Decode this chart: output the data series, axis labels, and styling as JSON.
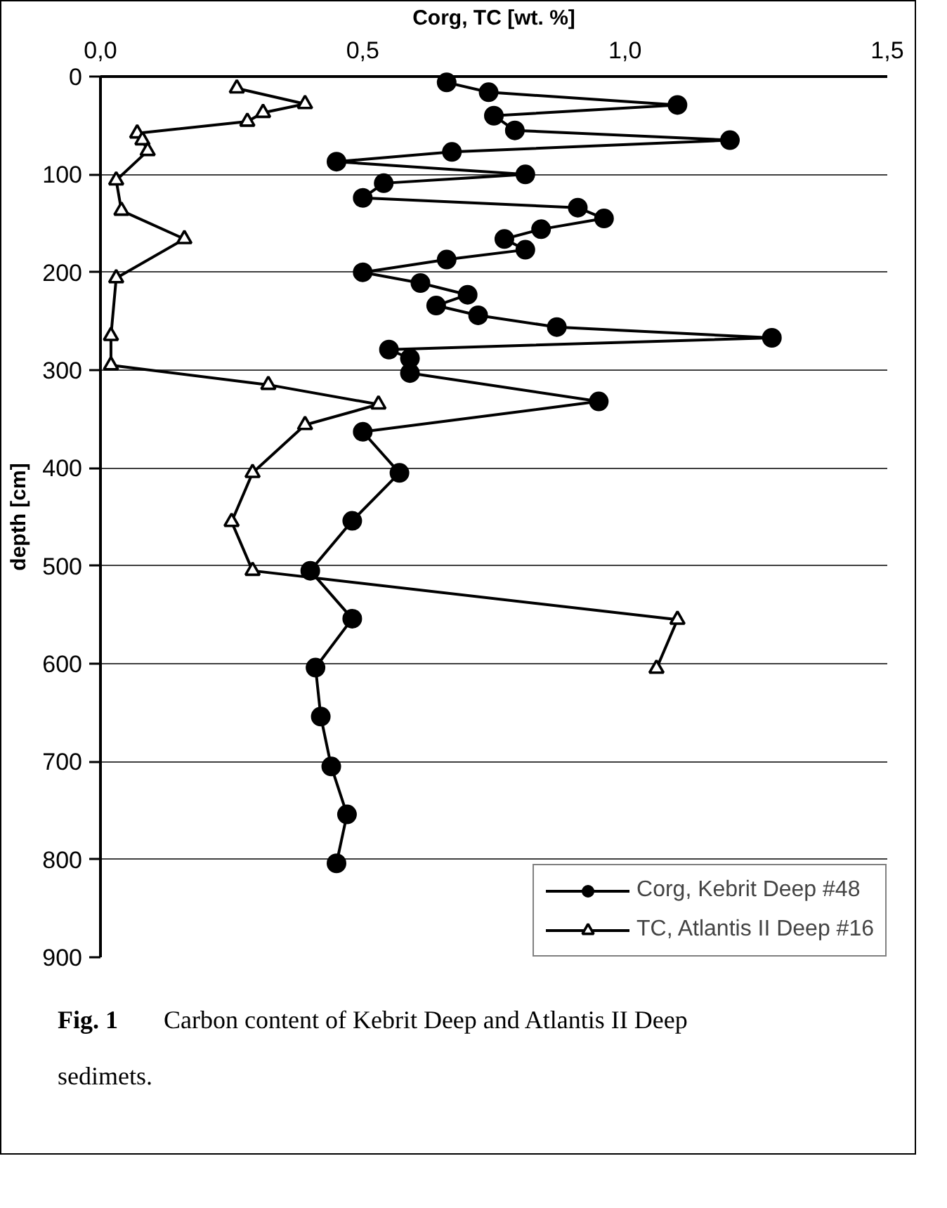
{
  "chart_data": {
    "type": "line",
    "xlabel": "Corg, TC [wt. %]",
    "ylabel": "depth [cm]",
    "xlim": [
      0,
      1.5
    ],
    "ylim": [
      900,
      0
    ],
    "xticks": [
      {
        "value": 0,
        "label": "0,0"
      },
      {
        "value": 0.5,
        "label": "0,5"
      },
      {
        "value": 1.0,
        "label": "1,0"
      },
      {
        "value": 1.5,
        "label": "1,5"
      }
    ],
    "yticks": [
      0,
      100,
      200,
      300,
      400,
      500,
      600,
      700,
      800,
      900
    ],
    "grid": "y",
    "legend": "bottom right",
    "line_style": "solid",
    "annotations": [
      "Fig. 1",
      "Carbon content of Kebrit Deep and Atlantis II Deep sedimets."
    ],
    "series": [
      {
        "name": "Corg, Kebrit Deep #48",
        "color": "#000000",
        "marker": "circle",
        "x": [
          0.66,
          0.74,
          1.1,
          0.75,
          0.79,
          1.2,
          0.67,
          0.45,
          0.81,
          0.54,
          0.5,
          0.91,
          0.96,
          0.84,
          0.77,
          0.81,
          0.66,
          0.5,
          0.61,
          0.7,
          0.64,
          0.72,
          0.87,
          1.28,
          0.55,
          0.59,
          0.59,
          0.95,
          0.5,
          0.57,
          0.48,
          0.4,
          0.48,
          0.41,
          0.42,
          0.44,
          0.47,
          0.45
        ],
        "values": [
          6,
          16,
          29,
          40,
          55,
          65,
          77,
          87,
          100,
          109,
          124,
          134,
          145,
          156,
          166,
          177,
          187,
          200,
          211,
          223,
          234,
          244,
          256,
          267,
          279,
          288,
          303,
          332,
          363,
          405,
          454,
          505,
          554,
          604,
          654,
          705,
          754,
          804
        ]
      },
      {
        "name": "TC, Atlantis II Deep #16",
        "color": "#000000",
        "marker": "triangle",
        "x": [
          0.26,
          0.39,
          0.31,
          0.28,
          0.07,
          0.08,
          0.09,
          0.03,
          0.04,
          0.16,
          0.03,
          0.02,
          0.02,
          0.32,
          0.53,
          0.39,
          0.29,
          0.25,
          0.29,
          1.1,
          1.06
        ],
        "values": [
          12,
          28,
          37,
          46,
          58,
          65,
          76,
          106,
          137,
          166,
          206,
          265,
          295,
          315,
          335,
          356,
          405,
          455,
          505,
          555,
          605
        ]
      }
    ]
  }
}
